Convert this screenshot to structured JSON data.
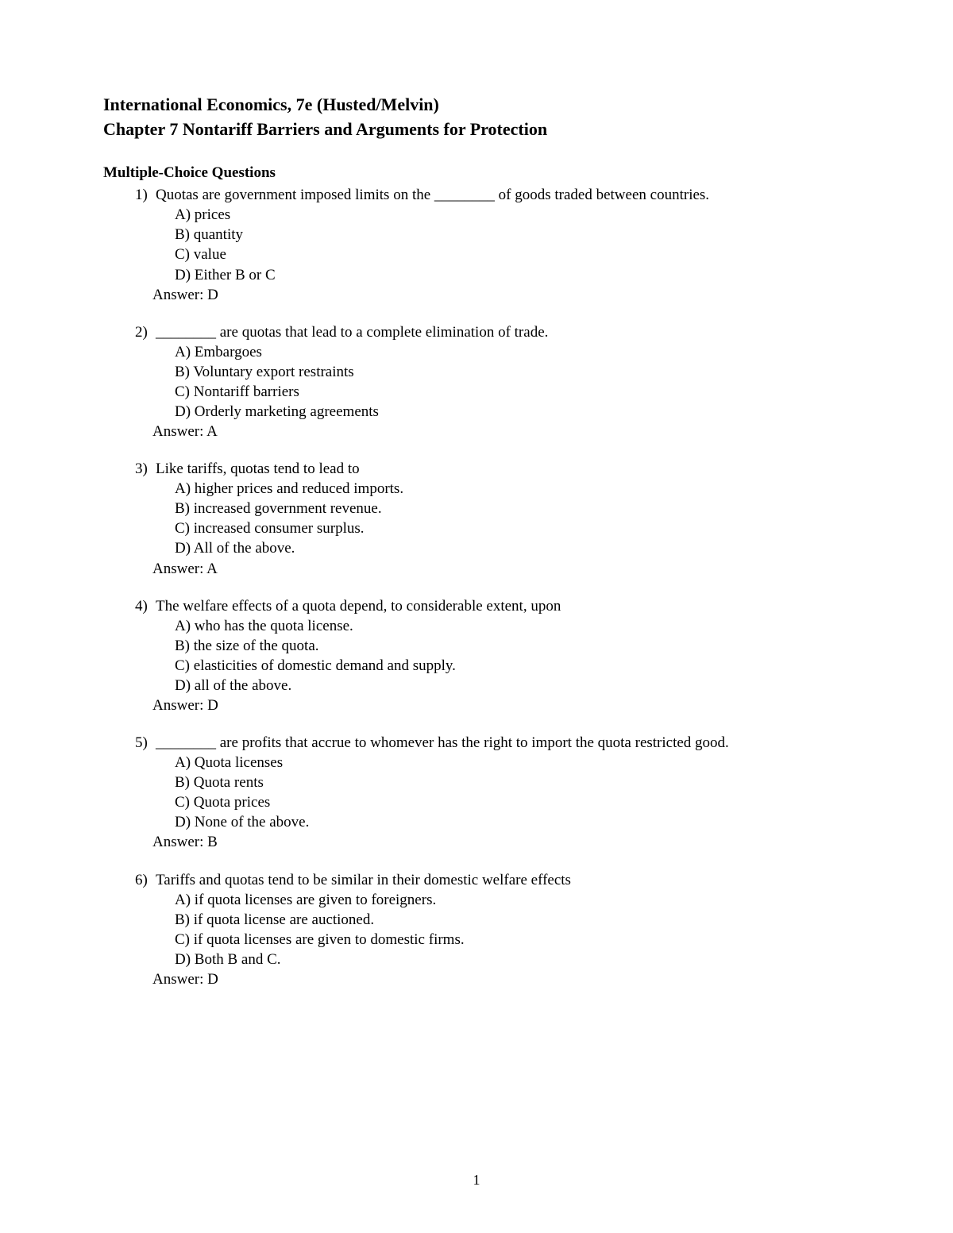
{
  "header": {
    "title_line1": "International Economics, 7e (Husted/Melvin)",
    "title_line2": "Chapter 7  Nontariff Barriers and Arguments for Protection"
  },
  "section_heading": "Multiple-Choice Questions",
  "answer_prefix": "Answer:  ",
  "page_number": "1",
  "questions": [
    {
      "num": "1)",
      "stem": "Quotas are government imposed limits on the ________ of goods traded between countries.",
      "choices": [
        "A) prices",
        "B) quantity",
        "C) value",
        "D) Either B or C"
      ],
      "answer": "D"
    },
    {
      "num": "2)",
      "stem": "________ are quotas that lead to a complete elimination of trade.",
      "choices": [
        "A) Embargoes",
        "B) Voluntary export restraints",
        "C) Nontariff barriers",
        "D) Orderly marketing agreements"
      ],
      "answer": "A"
    },
    {
      "num": "3)",
      "stem": "Like tariffs, quotas tend to lead to",
      "choices": [
        "A) higher prices and reduced imports.",
        "B) increased government revenue.",
        "C) increased consumer surplus.",
        "D) All of the above."
      ],
      "answer": "A"
    },
    {
      "num": "4)",
      "stem": "The welfare effects of a quota depend, to considerable extent, upon",
      "choices": [
        "A) who has the quota license.",
        "B) the size of the quota.",
        "C) elasticities of domestic demand and supply.",
        "D) all of the above."
      ],
      "answer": "D"
    },
    {
      "num": "5)",
      "stem": "________ are profits that accrue to whomever has the right to import the quota restricted good.",
      "choices": [
        "A) Quota licenses",
        "B) Quota rents",
        "C) Quota prices",
        "D) None of the above."
      ],
      "answer": "B"
    },
    {
      "num": "6)",
      "stem": "Tariffs and quotas tend to be similar in their domestic welfare effects",
      "choices": [
        "A) if quota licenses are given to foreigners.",
        "B) if quota license are auctioned.",
        "C) if quota licenses are given to domestic firms.",
        "D) Both B and C."
      ],
      "answer": "D"
    }
  ]
}
